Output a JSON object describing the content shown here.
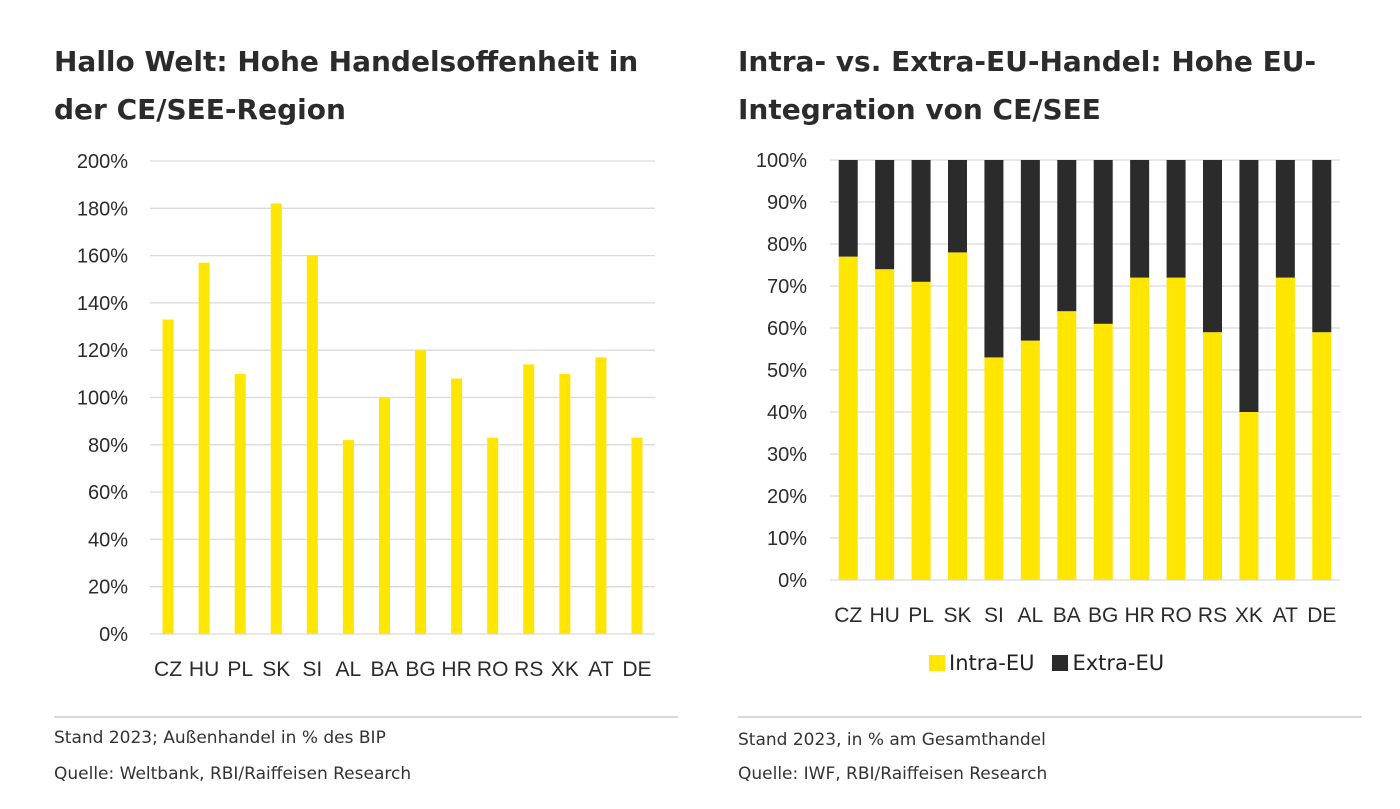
{
  "colors": {
    "intra": "#ffe600",
    "extra": "#2b2b2b",
    "grid": "#d9d9d9",
    "text": "#2b2b2b"
  },
  "left": {
    "title_line1": "Hallo Welt: Hohe Handelsoffenheit in",
    "title_line2": "der CE/SEE-Region",
    "note": "Stand 2023; Außenhandel in % des BIP",
    "source": "Quelle: Weltbank, RBI/Raiffeisen Research"
  },
  "right": {
    "title_line1": "Intra- vs. Extra-EU-Handel: Hohe EU-",
    "title_line2": "Integration von CE/SEE",
    "note": "Stand 2023, in % am Gesamthandel",
    "source": "Quelle: IWF, RBI/Raiffeisen Research",
    "legend": {
      "intra": "Intra-EU",
      "extra": "Extra-EU"
    }
  },
  "chart_data": [
    {
      "type": "bar",
      "title": "Hallo Welt: Hohe Handelsoffenheit in der CE/SEE-Region",
      "xlabel": "",
      "ylabel": "",
      "categories": [
        "CZ",
        "HU",
        "PL",
        "SK",
        "SI",
        "AL",
        "BA",
        "BG",
        "HR",
        "RO",
        "RS",
        "XK",
        "AT",
        "DE"
      ],
      "values": [
        133,
        157,
        110,
        182,
        160,
        82,
        100,
        120,
        108,
        83,
        114,
        110,
        117,
        83
      ],
      "ylim": [
        0,
        200
      ],
      "yticks": [
        0,
        20,
        40,
        60,
        80,
        100,
        120,
        140,
        160,
        180,
        200
      ],
      "ytick_labels": [
        "0%",
        "20%",
        "40%",
        "60%",
        "80%",
        "100%",
        "120%",
        "140%",
        "160%",
        "180%",
        "200%"
      ],
      "grid": true
    },
    {
      "type": "bar",
      "stacked": true,
      "title": "Intra- vs. Extra-EU-Handel: Hohe EU-Integration von CE/SEE",
      "xlabel": "",
      "ylabel": "",
      "categories": [
        "CZ",
        "HU",
        "PL",
        "SK",
        "SI",
        "AL",
        "BA",
        "BG",
        "HR",
        "RO",
        "RS",
        "XK",
        "AT",
        "DE"
      ],
      "series": [
        {
          "name": "Intra-EU",
          "values": [
            77,
            74,
            71,
            78,
            53,
            57,
            64,
            61,
            72,
            72,
            59,
            40,
            72,
            59
          ]
        },
        {
          "name": "Extra-EU",
          "values": [
            23,
            26,
            29,
            22,
            47,
            43,
            36,
            39,
            28,
            28,
            41,
            60,
            28,
            41
          ]
        }
      ],
      "ylim": [
        0,
        100
      ],
      "yticks": [
        0,
        10,
        20,
        30,
        40,
        50,
        60,
        70,
        80,
        90,
        100
      ],
      "ytick_labels": [
        "0%",
        "10%",
        "20%",
        "30%",
        "40%",
        "50%",
        "60%",
        "70%",
        "80%",
        "90%",
        "100%"
      ],
      "grid": true,
      "legend_position": "bottom-center"
    }
  ]
}
